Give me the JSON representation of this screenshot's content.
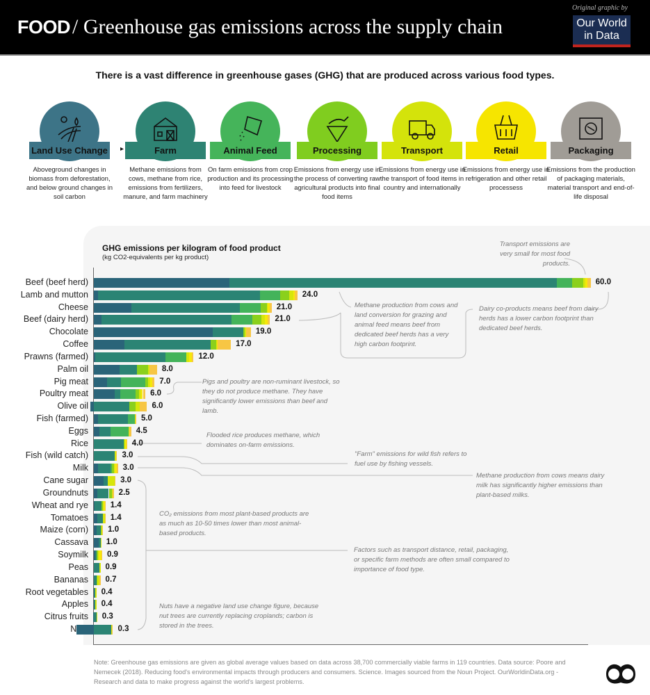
{
  "header": {
    "category": "FOOD",
    "separator": "/",
    "title": "Greenhouse gas emissions across the supply chain",
    "credit_prefix": "Original graphic by",
    "logo_line1": "Our World",
    "logo_line2": "in Data"
  },
  "subtitle": "There is a vast difference in greenhouse gases (GHG) that are produced across various food types.",
  "stages": [
    {
      "label": "Land Use Change",
      "color": "#3d7487",
      "icon": "field-icon",
      "desc": "Aboveground changes in biomass from deforestation, and below ground changes in soil carbon"
    },
    {
      "label": "Farm",
      "color": "#2e8373",
      "icon": "barn-icon",
      "desc": "Methane emissions from cows, methane from rice, emissions from fertilizers, manure, and farm machinery"
    },
    {
      "label": "Animal Feed",
      "color": "#45b45a",
      "icon": "feed-bag-icon",
      "desc": "On farm emissions from crop production and its processing into feed for livestock"
    },
    {
      "label": "Processing",
      "color": "#80cd1f",
      "icon": "mortar-icon",
      "desc": "Emissions from energy use in the process of converting raw agricultural products into final food items"
    },
    {
      "label": "Transport",
      "color": "#d4e30b",
      "icon": "truck-icon",
      "desc": "Emissions from energy use in the transport of food items in country and internationally"
    },
    {
      "label": "Retail",
      "color": "#f6e500",
      "icon": "basket-icon",
      "desc": "Emissions from energy use in refrigeration and other retail processess"
    },
    {
      "label": "Packaging",
      "color": "#a09c96",
      "icon": "package-icon",
      "desc": "Emissions from the production of packaging materials, material transport and end-of-life disposal"
    }
  ],
  "chart_data": {
    "type": "bar",
    "orientation": "horizontal",
    "stacked": true,
    "title": "GHG emissions per kilogram of food product",
    "subtitle": "(kg CO2-equivalents per kg product)",
    "xlim": [
      -2.5,
      60
    ],
    "series_names": [
      "Land Use Change",
      "Farm",
      "Animal Feed",
      "Processing",
      "Transport",
      "Retail",
      "Packaging"
    ],
    "series_colors": [
      "#2a6479",
      "#2b8474",
      "#44b35a",
      "#8bd01c",
      "#d6e60c",
      "#f6e80a",
      "#f7c644"
    ],
    "categories": [
      "Beef (beef herd)",
      "Lamb and mutton",
      "Cheese",
      "Beef (dairy herd)",
      "Chocolate",
      "Coffee",
      "Prawns (farmed)",
      "Palm oil",
      "Pig meat",
      "Poultry meat",
      "Olive oil",
      "Fish (farmed)",
      "Eggs",
      "Rice",
      "Fish (wild catch)",
      "Milk",
      "Cane sugar",
      "Groundnuts",
      "Wheat and rye",
      "Tomatoes",
      "Maize (corn)",
      "Cassava",
      "Soymilk",
      "Peas",
      "Bananas",
      "Root vegetables",
      "Apples",
      "Citrus fruits",
      "Nuts"
    ],
    "totals": [
      60.0,
      24.0,
      21.0,
      21.0,
      19.0,
      17.0,
      12.0,
      8.0,
      7.0,
      6.0,
      6.0,
      5.0,
      4.5,
      4.0,
      3.0,
      3.0,
      3.0,
      2.5,
      1.4,
      1.4,
      1.0,
      1.0,
      0.9,
      0.9,
      0.7,
      0.4,
      0.4,
      0.3,
      0.3
    ],
    "segments": [
      [
        16.3,
        39.4,
        1.9,
        1.3,
        0.3,
        0.2,
        0.4
      ],
      [
        0.5,
        19.5,
        2.4,
        1.1,
        0.5,
        0.2,
        0.3
      ],
      [
        4.5,
        13.1,
        2.5,
        0.7,
        0.1,
        0.3,
        0.2
      ],
      [
        0.9,
        15.7,
        2.5,
        1.1,
        0.4,
        0.3,
        0.3
      ],
      [
        14.3,
        3.7,
        0,
        0.2,
        0.1,
        0,
        0.6
      ],
      [
        3.7,
        10.4,
        0,
        0.6,
        0.1,
        0.1,
        1.6
      ],
      [
        0.2,
        8.4,
        2.5,
        0,
        0.4,
        0.3,
        0.2
      ],
      [
        3.1,
        2.1,
        0,
        1.3,
        0.2,
        0,
        0.9
      ],
      [
        1.6,
        1.7,
        2.9,
        0.3,
        0.3,
        0.2,
        0.3
      ],
      [
        2.5,
        0.7,
        1.8,
        0.4,
        0.3,
        0.2,
        0.3
      ],
      [
        -0.4,
        4.3,
        0,
        0.7,
        0.5,
        0,
        0.9
      ],
      [
        0.5,
        3.6,
        0.8,
        0,
        0.1,
        0,
        0.1
      ],
      [
        0.7,
        1.3,
        2.2,
        0,
        0.1,
        0,
        0.2
      ],
      [
        0,
        3.6,
        0,
        0.1,
        0.1,
        0.1,
        0.1
      ],
      [
        0,
        2.5,
        0,
        0,
        0.2,
        0,
        0.1
      ],
      [
        0.5,
        1.5,
        0.2,
        0.2,
        0.1,
        0.3,
        0.1
      ],
      [
        1.2,
        0.5,
        0,
        0,
        0.8,
        0,
        0.1
      ],
      [
        0.4,
        1.4,
        0,
        0.4,
        0.1,
        0,
        0.1
      ],
      [
        0.1,
        0.8,
        0,
        0.2,
        0.1,
        0.1,
        0.1
      ],
      [
        0.4,
        0.7,
        0,
        0,
        0.2,
        0,
        0.1
      ],
      [
        0.3,
        0.5,
        0,
        0.1,
        0.1,
        0,
        0.1
      ],
      [
        0.6,
        0.2,
        0,
        0,
        0.1,
        0,
        0
      ],
      [
        0.2,
        0.1,
        0,
        0.2,
        0.1,
        0.3,
        0.1
      ],
      [
        0,
        0.7,
        0,
        0,
        0.1,
        0,
        0
      ],
      [
        0,
        0.3,
        0,
        0.1,
        0.3,
        0,
        0.1
      ],
      [
        0,
        0.2,
        0,
        0,
        0.1,
        0,
        0
      ],
      [
        0,
        0.2,
        0,
        0,
        0.1,
        0,
        0
      ],
      [
        -0.1,
        0.3,
        0,
        0,
        0.1,
        0,
        0
      ],
      [
        -2.1,
        2.1,
        0,
        0,
        0.1,
        0,
        0.1
      ]
    ],
    "annotations": [
      "Transport emissions are very small for most food products.",
      "Methane production from cows and land conversion for grazing and animal feed means beef from dedicated beef herds has a very high carbon footprint.",
      "Dairy co-products means beef from dairy herds has a lower carbon footprint than dedicated beef herds.",
      "Pigs and poultry are non-ruminant livestock, so they do not produce methane. They have significantly lower emissions than beef and lamb.",
      "Flooded rice produces methane, which dominates on-farm emissions.",
      "\"Farm\" emissions for wild fish refers to fuel use by fishing vessels.",
      "Methane production from cows means dairy milk has significantly higher emissions than plant-based milks.",
      "CO₂ emissions from most plant-based products are as much as 10-50 times lower than most animal-based products.",
      "Factors such as transport distance, retail, packaging, or specific farm methods are often small compared to importance of food type.",
      "Nuts have a negative land use change figure, because nut trees are currently replacing croplands; carbon is stored in the trees."
    ]
  },
  "footer": {
    "note": "Note: Greenhouse gas emissions are given as global average values based on data across 38,700 commercially viable farms in 119 countries. Data source: Poore and Nemecek (2018). Reducing food's environmental impacts through producers and consumers. Science. Images sourced from the Noun Project. OurWorldinData.org - Research and data to make progress against the world's largest problems."
  }
}
